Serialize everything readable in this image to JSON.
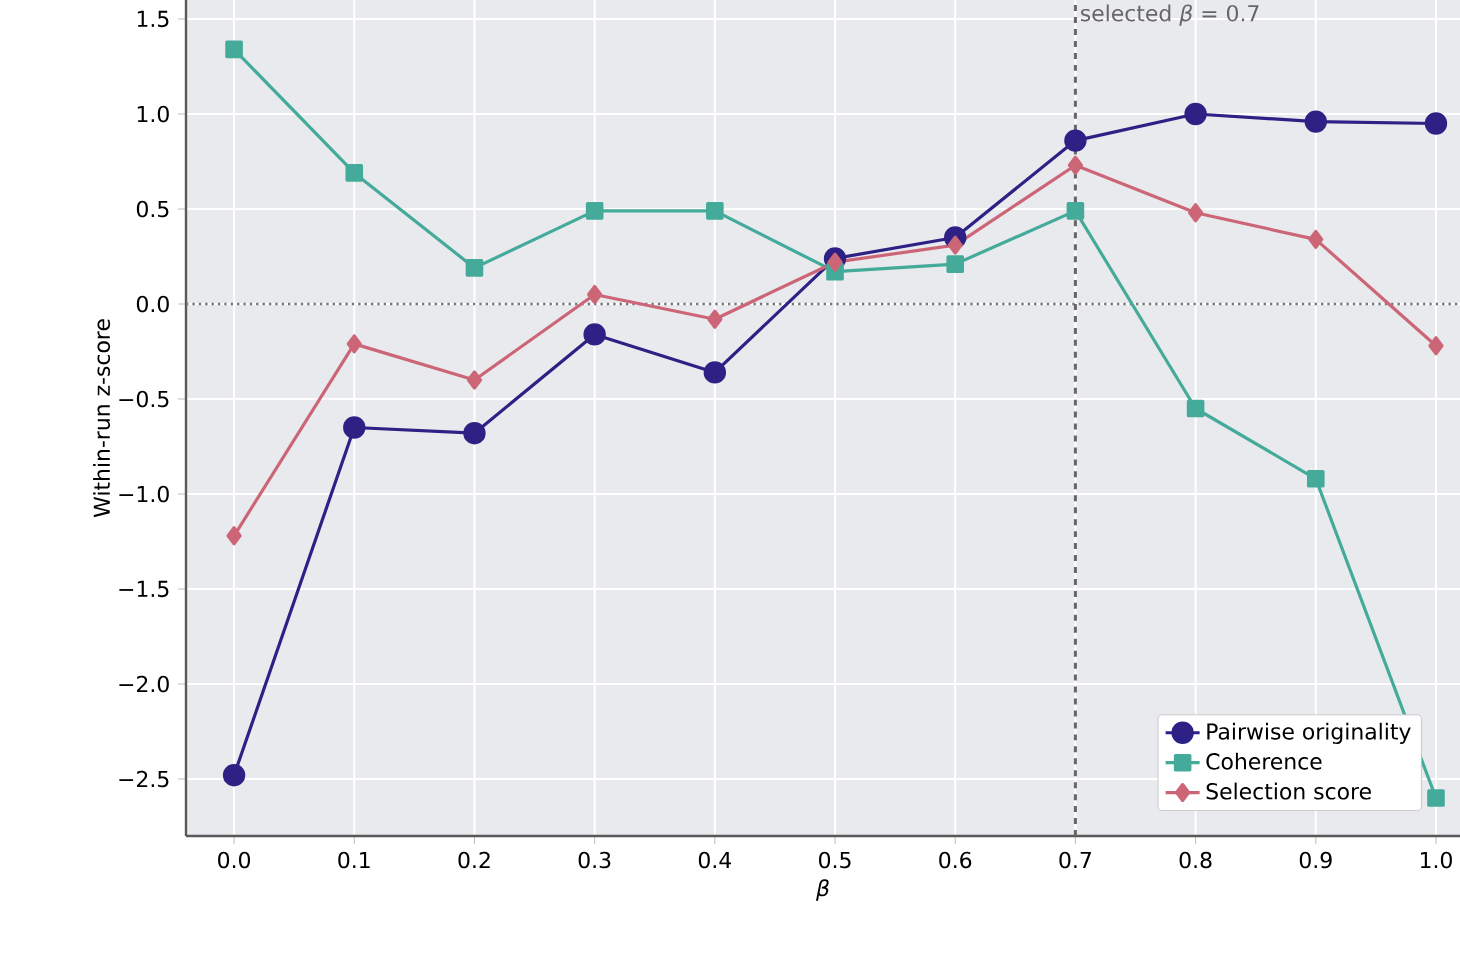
{
  "chart_data": {
    "type": "line",
    "xlabel": "β",
    "ylabel": "Within-run z-score",
    "x": [
      0.0,
      0.1,
      0.2,
      0.3,
      0.4,
      0.5,
      0.6,
      0.7,
      0.8,
      0.9,
      1.0
    ],
    "series": [
      {
        "name": "Pairwise originality",
        "color": "#2e2185",
        "marker": "circle",
        "values": [
          -2.48,
          -0.65,
          -0.68,
          -0.16,
          -0.36,
          0.24,
          0.35,
          0.86,
          1.0,
          0.96,
          0.95
        ]
      },
      {
        "name": "Coherence",
        "color": "#44aa99",
        "marker": "square",
        "values": [
          1.34,
          0.69,
          0.19,
          0.49,
          0.49,
          0.17,
          0.21,
          0.49,
          -0.55,
          -0.92,
          -2.6
        ]
      },
      {
        "name": "Selection score",
        "color": "#cc6677",
        "marker": "diamond",
        "values": [
          -1.22,
          -0.21,
          -0.4,
          0.05,
          -0.08,
          0.22,
          0.31,
          0.73,
          0.48,
          0.34,
          -0.22
        ]
      }
    ],
    "xlim": [
      -0.04,
      1.02
    ],
    "ylim": [
      -2.8,
      1.6
    ],
    "xticks": [
      {
        "value": 0.0,
        "label": "0.0"
      },
      {
        "value": 0.1,
        "label": "0.1"
      },
      {
        "value": 0.2,
        "label": "0.2"
      },
      {
        "value": 0.3,
        "label": "0.3"
      },
      {
        "value": 0.4,
        "label": "0.4"
      },
      {
        "value": 0.5,
        "label": "0.5"
      },
      {
        "value": 0.6,
        "label": "0.6"
      },
      {
        "value": 0.7,
        "label": "0.7"
      },
      {
        "value": 0.8,
        "label": "0.8"
      },
      {
        "value": 0.9,
        "label": "0.9"
      },
      {
        "value": 1.0,
        "label": "1.0"
      }
    ],
    "yticks": [
      {
        "value": -2.5,
        "label": "−2.5"
      },
      {
        "value": -2.0,
        "label": "−2.0"
      },
      {
        "value": -1.5,
        "label": "−1.5"
      },
      {
        "value": -1.0,
        "label": "−1.0"
      },
      {
        "value": -0.5,
        "label": "−0.5"
      },
      {
        "value": 0.0,
        "label": "0.0"
      },
      {
        "value": 0.5,
        "label": "0.5"
      },
      {
        "value": 1.0,
        "label": "1.0"
      },
      {
        "value": 1.5,
        "label": "1.5"
      }
    ],
    "ref_lines": [
      {
        "axis": "y",
        "value": 0,
        "color": "#777777",
        "line_style": "dotted"
      },
      {
        "axis": "x",
        "value": 0.7,
        "color": "#666666",
        "line_style": "dashed",
        "label": "selected *β* = 0.7"
      }
    ],
    "grid": true,
    "legend": "bottom right",
    "line_style": "solid"
  }
}
